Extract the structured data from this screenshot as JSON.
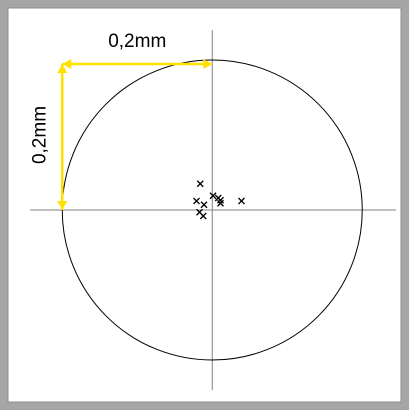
{
  "chart_data": {
    "type": "scatter",
    "x": [
      -0.016,
      -0.021,
      -0.011,
      -0.017,
      -0.012,
      0.001,
      0.008,
      0.011,
      0.011,
      0.039
    ],
    "values": [
      0.035,
      0.012,
      0.007,
      -0.003,
      -0.008,
      0.019,
      0.016,
      0.013,
      0.009,
      0.012
    ],
    "color": "#000000",
    "xlim": [
      -0.243,
      0.245
    ],
    "ylim": [
      -0.24,
      0.24
    ],
    "circle_radius": 0.2,
    "annotations": [
      "0,2mm",
      "0,2mm"
    ],
    "annotation_color": "#ffe100"
  }
}
